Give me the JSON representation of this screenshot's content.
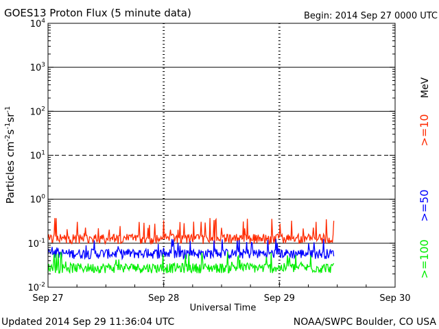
{
  "header": {
    "title": "GOES13 Proton Flux (5 minute data)",
    "begin": "Begin: 2014 Sep 27 0000 UTC"
  },
  "footer": {
    "updated": "Updated 2014 Sep 29 11:36:04 UTC",
    "credit": "NOAA/SWPC Boulder, CO USA"
  },
  "chart_data": {
    "type": "line",
    "title": "GOES13 Proton Flux (5 minute data)",
    "xlabel": "Universal Time",
    "ylabel": "Particles cm^-2 s^-1 sr^-1",
    "x_ticks": [
      "Sep 27",
      "Sep 28",
      "Sep 29",
      "Sep 30"
    ],
    "xlim_days": [
      0,
      3
    ],
    "y_scale": "log",
    "ylim": [
      0.01,
      10000
    ],
    "y_ticks": [
      {
        "base": "10",
        "exp": "-2"
      },
      {
        "base": "10",
        "exp": "-1"
      },
      {
        "base": "10",
        "exp": "0"
      },
      {
        "base": "10",
        "exp": "1"
      },
      {
        "base": "10",
        "exp": "2"
      },
      {
        "base": "10",
        "exp": "3"
      },
      {
        "base": "10",
        "exp": "4"
      }
    ],
    "threshold_level": 10,
    "legend": {
      "unit": "MeV",
      "placement": "right"
    },
    "data_end_day": 2.47,
    "series": [
      {
        "name": ">=10",
        "color": "#ff2a00",
        "typical": 0.12,
        "min": 0.09,
        "max": 0.38
      },
      {
        "name": ">=50",
        "color": "#0000ff",
        "typical": 0.055,
        "min": 0.035,
        "max": 0.13
      },
      {
        "name": ">=100",
        "color": "#00ee00",
        "typical": 0.026,
        "min": 0.018,
        "max": 0.065
      }
    ]
  }
}
